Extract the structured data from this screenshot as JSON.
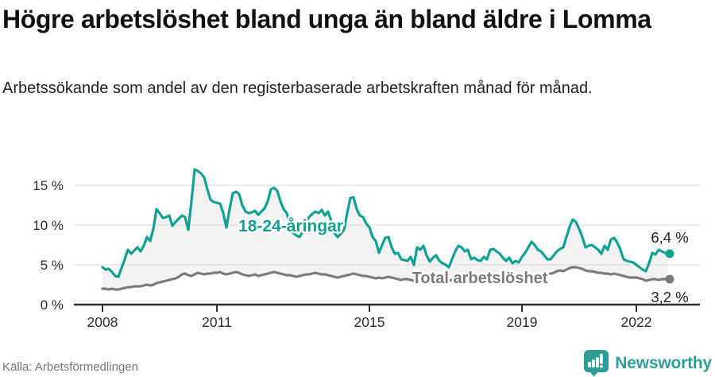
{
  "chart_data": {
    "type": "line",
    "title": "Högre arbetslöshet bland unga än bland äldre i Lomma",
    "subtitle": "Arbetssökande som andel av den registerbaserade arbetskraften månad för månad.",
    "source": "Källa: Arbetsförmedlingen",
    "x_start": "2008-01",
    "x_end": "2022-11",
    "x_interval": "monthly",
    "x_tick_labels": [
      "2008",
      "2011",
      "2015",
      "2019",
      "2022"
    ],
    "y_ticks": [
      {
        "value": 0,
        "label": "0 %"
      },
      {
        "value": 5,
        "label": "5 %"
      },
      {
        "value": 10,
        "label": "10 %"
      },
      {
        "value": 15,
        "label": "15 %"
      }
    ],
    "ylim": [
      0,
      18
    ],
    "grid": "horizontal",
    "legend_position": "inline-labels",
    "fill_between_color": "#f3f3f3",
    "axis_color": "#2f2f2f",
    "gridline_color": "#e3e3e3",
    "tick_label_color": "#2d2d2d",
    "end_label_color": "#222222",
    "series": [
      {
        "name": "18-24-åringar",
        "color": "#10a195",
        "end_label": "6,4 %",
        "last_value": 6.4,
        "values": [
          4.7,
          4.4,
          4.5,
          4.1,
          3.6,
          3.5,
          4.6,
          5.7,
          6.9,
          6.4,
          6.8,
          7.2,
          6.7,
          7.4,
          8.5,
          8.0,
          9.5,
          12.0,
          11.5,
          10.9,
          11.0,
          11.2,
          9.9,
          10.4,
          10.8,
          11.2,
          11.0,
          9.4,
          13.0,
          17.0,
          16.8,
          16.5,
          16.0,
          14.5,
          13.2,
          12.9,
          12.8,
          12.7,
          11.5,
          9.7,
          12.0,
          14.0,
          14.2,
          13.9,
          12.5,
          11.7,
          11.5,
          11.6,
          11.8,
          11.3,
          11.7,
          12.1,
          13.0,
          14.5,
          14.7,
          14.3,
          13.0,
          12.0,
          11.5,
          10.0,
          9.0,
          8.7,
          8.5,
          9.2,
          10.3,
          11.0,
          11.4,
          11.7,
          11.5,
          11.9,
          11.2,
          11.7,
          10.5,
          9.0,
          8.5,
          8.9,
          9.4,
          11.5,
          13.4,
          13.5,
          12.0,
          11.2,
          11.0,
          10.2,
          9.7,
          8.5,
          8.0,
          6.5,
          7.5,
          8.4,
          8.5,
          7.2,
          6.4,
          6.5,
          5.7,
          5.6,
          5.5,
          6.0,
          5.0,
          7.2,
          6.9,
          7.4,
          6.2,
          5.4,
          5.9,
          6.2,
          5.5,
          5.2,
          5.0,
          4.7,
          5.7,
          6.7,
          7.4,
          7.2,
          6.7,
          6.9,
          5.7,
          5.9,
          5.6,
          5.5,
          6.0,
          5.7,
          6.9,
          7.0,
          6.7,
          6.4,
          5.9,
          5.5,
          5.9,
          5.2,
          5.5,
          5.3,
          6.0,
          6.5,
          7.2,
          7.9,
          7.5,
          6.9,
          6.7,
          6.2,
          5.7,
          5.7,
          6.2,
          6.7,
          7.0,
          7.2,
          8.5,
          9.8,
          10.7,
          10.4,
          9.5,
          8.5,
          7.2,
          7.4,
          7.5,
          7.2,
          6.9,
          6.4,
          7.4,
          6.9,
          8.2,
          8.4,
          7.8,
          6.9,
          5.7,
          5.5,
          5.4,
          5.3,
          5.0,
          4.7,
          4.4,
          4.2,
          5.2,
          6.5,
          6.3,
          6.9,
          6.7,
          6.5,
          6.4
        ]
      },
      {
        "name": "Total arbetslöshet",
        "color": "#7b7b7b",
        "end_label": "3,2 %",
        "last_value": 3.2,
        "values": [
          2.0,
          2.0,
          1.9,
          2.0,
          1.9,
          1.9,
          2.0,
          2.1,
          2.2,
          2.2,
          2.3,
          2.3,
          2.3,
          2.4,
          2.5,
          2.4,
          2.5,
          2.7,
          2.8,
          2.9,
          3.0,
          3.1,
          3.2,
          3.3,
          3.5,
          3.8,
          3.9,
          3.7,
          3.6,
          3.8,
          4.0,
          3.9,
          3.8,
          3.9,
          3.9,
          4.0,
          4.0,
          4.1,
          3.9,
          3.8,
          3.9,
          4.0,
          4.1,
          4.0,
          3.8,
          3.7,
          3.6,
          3.7,
          3.8,
          3.6,
          3.7,
          3.8,
          3.9,
          4.0,
          4.1,
          4.0,
          3.9,
          3.8,
          3.7,
          3.7,
          3.6,
          3.5,
          3.6,
          3.7,
          3.8,
          3.8,
          3.9,
          4.0,
          3.9,
          3.8,
          3.8,
          3.7,
          3.6,
          3.5,
          3.4,
          3.5,
          3.6,
          3.7,
          3.8,
          3.9,
          3.8,
          3.7,
          3.6,
          3.6,
          3.5,
          3.4,
          3.3,
          3.4,
          3.3,
          3.4,
          3.5,
          3.4,
          3.3,
          3.2,
          3.1,
          3.2,
          3.2,
          3.1,
          3.0,
          3.1,
          3.2,
          3.3,
          3.4,
          3.3,
          3.2,
          3.3,
          3.2,
          3.1,
          3.1,
          3.0,
          3.1,
          3.2,
          3.3,
          3.4,
          3.5,
          3.4,
          3.3,
          3.2,
          3.2,
          3.1,
          3.2,
          3.1,
          3.2,
          3.3,
          3.2,
          3.3,
          3.4,
          3.3,
          3.2,
          3.1,
          3.2,
          3.3,
          3.4,
          3.3,
          3.4,
          3.5,
          3.4,
          3.5,
          3.6,
          3.7,
          3.8,
          3.9,
          4.0,
          4.2,
          4.3,
          4.2,
          4.4,
          4.6,
          4.7,
          4.7,
          4.6,
          4.5,
          4.3,
          4.2,
          4.2,
          4.1,
          4.0,
          4.0,
          3.9,
          3.9,
          3.8,
          3.9,
          3.8,
          3.7,
          3.6,
          3.5,
          3.4,
          3.4,
          3.4,
          3.3,
          3.2,
          3.0,
          3.1,
          3.2,
          3.2,
          3.1,
          3.2,
          3.2,
          3.2
        ]
      }
    ]
  },
  "branding": {
    "wordmark": "Newsworthy",
    "brand_color": "#2d9e97"
  }
}
